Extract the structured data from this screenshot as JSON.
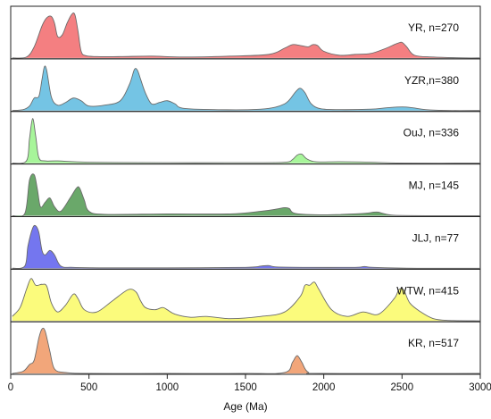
{
  "chart_data": {
    "type": "area",
    "chart_kind": "stacked kernel density (ridgeline) plots",
    "xlabel": "Age (Ma)",
    "xlim": [
      0,
      3000
    ],
    "xticks": [
      0,
      500,
      1000,
      1500,
      2000,
      2500,
      3000
    ],
    "xtick_labels": [
      "0",
      "500",
      "1000",
      "1500",
      "2000",
      "2500",
      "3000"
    ],
    "series": [
      {
        "label": "YR, n=270",
        "color": "#f47f81",
        "x": [
          10,
          100,
          150,
          200,
          230,
          260,
          280,
          300,
          330,
          360,
          390,
          410,
          430,
          450,
          480,
          550,
          700,
          900,
          1100,
          1400,
          1650,
          1750,
          1800,
          1850,
          1900,
          1930,
          1960,
          2000,
          2100,
          2200,
          2300,
          2400,
          2450,
          2480,
          2500,
          2530,
          2580,
          2700,
          2900,
          3000
        ],
        "density": [
          0,
          0.02,
          0.25,
          0.72,
          0.9,
          0.93,
          0.78,
          0.48,
          0.52,
          0.78,
          0.98,
          0.97,
          0.6,
          0.15,
          0.05,
          0.03,
          0.03,
          0.04,
          0.02,
          0.04,
          0.08,
          0.22,
          0.3,
          0.28,
          0.25,
          0.3,
          0.28,
          0.15,
          0.06,
          0.08,
          0.1,
          0.22,
          0.3,
          0.34,
          0.35,
          0.25,
          0.06,
          0.02,
          0,
          0
        ]
      },
      {
        "label": "YZR,n=380",
        "color": "#74c4e4",
        "x": [
          10,
          80,
          120,
          150,
          180,
          200,
          215,
          230,
          260,
          300,
          350,
          400,
          450,
          500,
          600,
          700,
          760,
          790,
          810,
          830,
          860,
          900,
          950,
          1000,
          1050,
          1100,
          1300,
          1600,
          1750,
          1820,
          1850,
          1880,
          1920,
          1980,
          2100,
          2300,
          2400,
          2500,
          2570,
          2650,
          2800,
          3000
        ],
        "density": [
          0,
          0.02,
          0.1,
          0.28,
          0.32,
          0.7,
          0.98,
          0.9,
          0.3,
          0.12,
          0.18,
          0.28,
          0.22,
          0.1,
          0.12,
          0.22,
          0.6,
          0.92,
          0.9,
          0.7,
          0.4,
          0.15,
          0.18,
          0.22,
          0.15,
          0.05,
          0.02,
          0.03,
          0.15,
          0.42,
          0.5,
          0.4,
          0.15,
          0.04,
          0.02,
          0.03,
          0.06,
          0.08,
          0.06,
          0.02,
          0,
          0
        ]
      },
      {
        "label": "OuJ, n=336",
        "color": "#a7f59a",
        "x": [
          10,
          100,
          120,
          140,
          160,
          180,
          220,
          300,
          500,
          1000,
          1500,
          1750,
          1800,
          1830,
          1860,
          1890,
          1950,
          2100,
          2300,
          2500,
          3000
        ],
        "density": [
          0,
          0.05,
          0.55,
          1.0,
          0.6,
          0.12,
          0.05,
          0.05,
          0.02,
          0.01,
          0.01,
          0.02,
          0.08,
          0.18,
          0.2,
          0.1,
          0.03,
          0.03,
          0.02,
          0,
          0
        ]
      },
      {
        "label": "MJ, n=145",
        "color": "#6aa86a",
        "x": [
          10,
          90,
          120,
          150,
          170,
          190,
          220,
          250,
          280,
          320,
          380,
          420,
          440,
          470,
          500,
          600,
          1000,
          1400,
          1600,
          1700,
          1750,
          1780,
          1820,
          2000,
          2250,
          2320,
          2350,
          2380,
          2450,
          2700,
          3000
        ],
        "density": [
          0,
          0.05,
          0.8,
          0.92,
          0.6,
          0.2,
          0.3,
          0.4,
          0.2,
          0.1,
          0.4,
          0.62,
          0.62,
          0.35,
          0.1,
          0.03,
          0.04,
          0.04,
          0.1,
          0.15,
          0.18,
          0.16,
          0.05,
          0.02,
          0.05,
          0.08,
          0.08,
          0.05,
          0.01,
          0,
          0
        ]
      },
      {
        "label": "JLJ, n=77",
        "color": "#7476ef",
        "x": [
          10,
          90,
          110,
          140,
          160,
          180,
          200,
          220,
          250,
          280,
          320,
          400,
          600,
          1000,
          1500,
          1600,
          1650,
          1700,
          1900,
          2200,
          2260,
          2320,
          2600,
          3000
        ],
        "density": [
          0,
          0.05,
          0.5,
          0.9,
          0.95,
          0.8,
          0.4,
          0.3,
          0.4,
          0.3,
          0.05,
          0.02,
          0.01,
          0.01,
          0.02,
          0.05,
          0.06,
          0.03,
          0.02,
          0.02,
          0.04,
          0.02,
          0,
          0
        ]
      },
      {
        "label": "WTW, n=415",
        "color": "#fbfb7c",
        "x": [
          10,
          60,
          100,
          130,
          160,
          200,
          230,
          260,
          300,
          350,
          400,
          430,
          470,
          550,
          650,
          750,
          800,
          830,
          860,
          920,
          970,
          1000,
          1050,
          1150,
          1250,
          1400,
          1600,
          1750,
          1850,
          1880,
          1910,
          1940,
          1970,
          2050,
          2150,
          2250,
          2350,
          2450,
          2480,
          2510,
          2550,
          2620,
          2700,
          2800,
          3000
        ],
        "density": [
          0.1,
          0.3,
          0.7,
          0.95,
          0.8,
          0.82,
          0.78,
          0.4,
          0.2,
          0.35,
          0.6,
          0.5,
          0.25,
          0.2,
          0.45,
          0.7,
          0.65,
          0.45,
          0.3,
          0.25,
          0.3,
          0.25,
          0.15,
          0.08,
          0.1,
          0.05,
          0.1,
          0.2,
          0.55,
          0.8,
          0.8,
          0.87,
          0.7,
          0.25,
          0.1,
          0.2,
          0.15,
          0.5,
          0.7,
          0.7,
          0.4,
          0.2,
          0.05,
          0.01,
          0
        ]
      },
      {
        "label": "KR, n=517",
        "color": "#f2a67a",
        "x": [
          10,
          80,
          120,
          150,
          180,
          200,
          220,
          250,
          280,
          350,
          500,
          1000,
          1500,
          1750,
          1800,
          1830,
          1860,
          1900,
          2000,
          3000
        ],
        "density": [
          0,
          0.05,
          0.2,
          0.3,
          0.8,
          1.0,
          0.95,
          0.5,
          0.1,
          0.02,
          0,
          0,
          0,
          0.02,
          0.25,
          0.4,
          0.25,
          0.03,
          0,
          0
        ]
      }
    ]
  }
}
